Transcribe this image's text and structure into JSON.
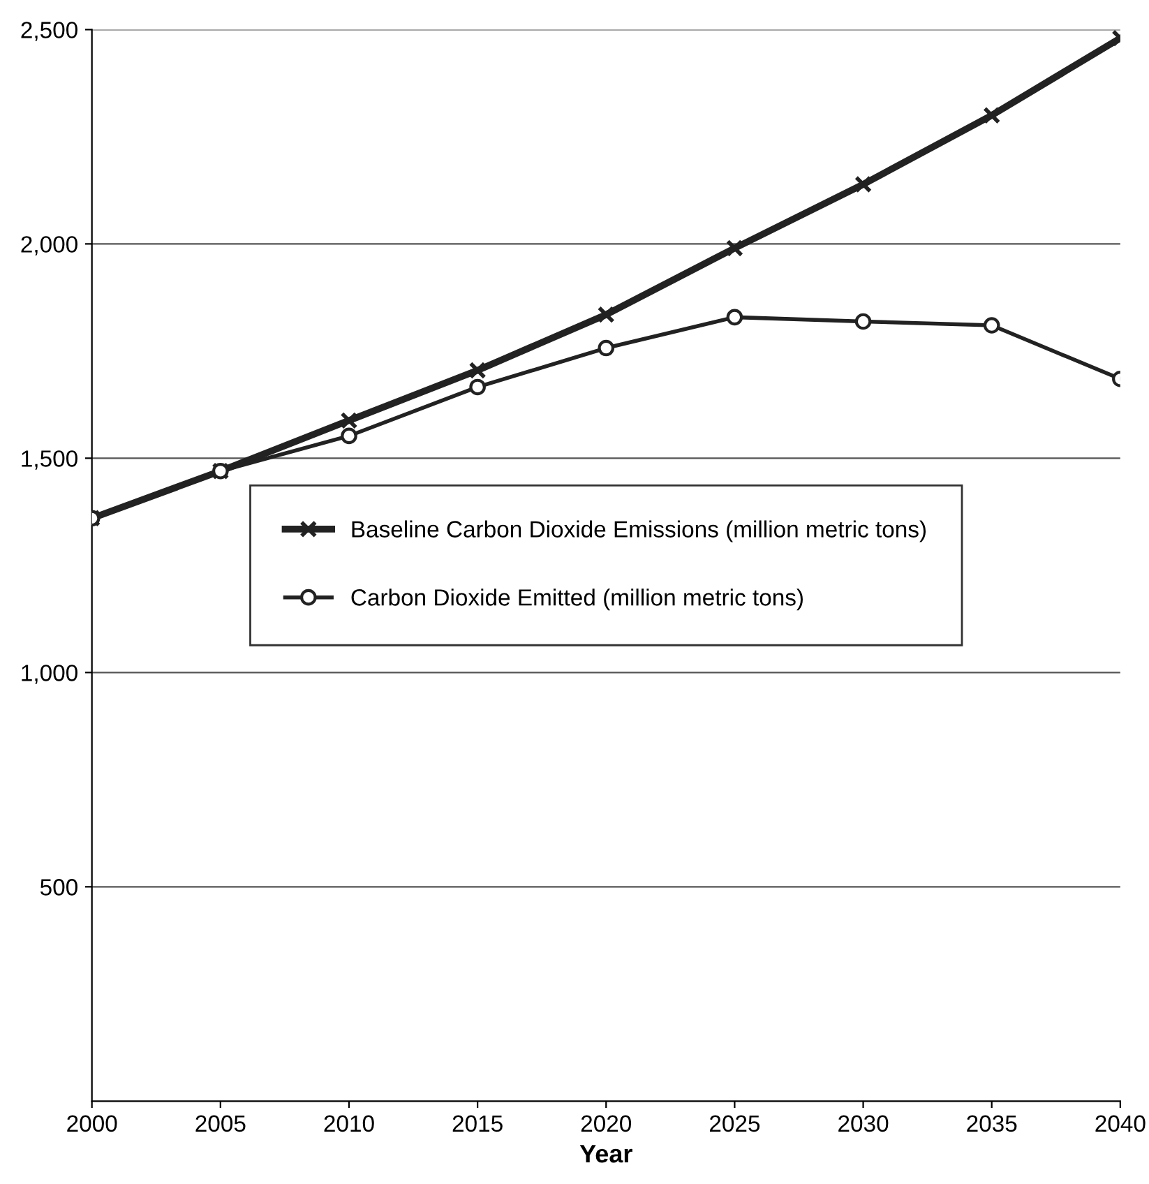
{
  "chart_data": {
    "type": "line",
    "xlabel": "Year",
    "x": [
      2000,
      2005,
      2010,
      2015,
      2020,
      2025,
      2030,
      2035,
      2040
    ],
    "series": [
      {
        "name": "Baseline Carbon Dioxide Emissions (million metric tons)",
        "color": "#222222",
        "marker": "cross",
        "values": [
          1360,
          1470,
          1588,
          1705,
          1835,
          1990,
          2139,
          2300,
          2480
        ]
      },
      {
        "name": "Carbon Dioxide Emitted (million metric tons)",
        "color": "#222222",
        "marker": "circle",
        "values": [
          1360,
          1470,
          1552,
          1666,
          1757,
          1829,
          1819,
          1810,
          1685
        ]
      }
    ],
    "xlim": [
      2000,
      2040
    ],
    "xticks": [
      2000,
      2005,
      2010,
      2015,
      2020,
      2025,
      2030,
      2035,
      2040
    ],
    "ylim": [
      0,
      2500
    ],
    "yticks": [
      {
        "value": 500,
        "label": "500"
      },
      {
        "value": 1000,
        "label": "1,000"
      },
      {
        "value": 1500,
        "label": "1,500"
      },
      {
        "value": 2000,
        "label": "2,000"
      },
      {
        "value": 2500,
        "label": "2,500"
      }
    ],
    "grid": "y",
    "legend": "center",
    "line_style": "solid"
  }
}
